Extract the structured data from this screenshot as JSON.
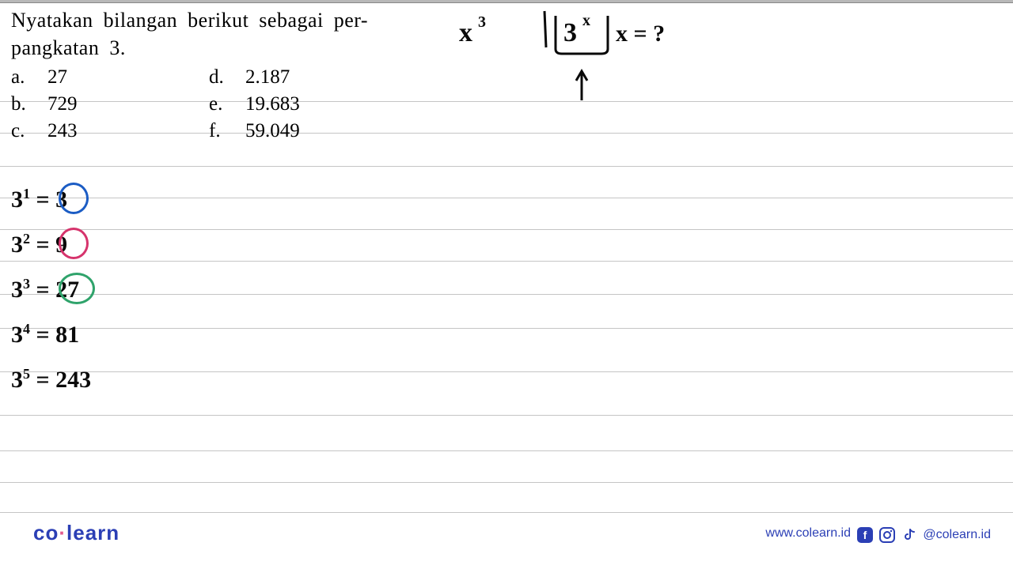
{
  "question": {
    "title_line1": "Nyatakan  bilangan  berikut  sebagai  per-",
    "title_line2": "pangkatan 3.",
    "options": [
      {
        "letter": "a.",
        "value": "27"
      },
      {
        "letter": "b.",
        "value": "729"
      },
      {
        "letter": "c.",
        "value": "243"
      },
      {
        "letter": "d.",
        "value": "2.187"
      },
      {
        "letter": "e.",
        "value": "19.683"
      },
      {
        "letter": "f.",
        "value": "59.049"
      }
    ]
  },
  "handwriting_right": {
    "x_cubed": "x",
    "x_cubed_exp": "3",
    "box_base": "3",
    "box_exp": "x",
    "eq": "x = ?"
  },
  "handwriting_left": [
    {
      "base": "3",
      "exp": "1",
      "result": "3",
      "circle_color": "#1b5cc4"
    },
    {
      "base": "3",
      "exp": "2",
      "result": "9",
      "circle_color": "#d6336c"
    },
    {
      "base": "3",
      "exp": "3",
      "result": "27",
      "circle_color": "#2fa36b"
    },
    {
      "base": "3",
      "exp": "4",
      "result": "81",
      "circle_color": null
    },
    {
      "base": "3",
      "exp": "5",
      "result": "243",
      "circle_color": null
    }
  ],
  "ruled_line_positions": [
    128,
    168,
    210,
    250,
    290,
    330,
    372,
    415,
    470,
    525,
    570,
    610,
    648
  ],
  "line_color": "#c5c5c5",
  "footer": {
    "logo_co": "co",
    "logo_learn": "learn",
    "url": "www.colearn.id",
    "handle": "@colearn.id"
  },
  "colors": {
    "brand": "#2b3fb5",
    "accent": "#e35b8f",
    "ink": "#0a0a0a",
    "circle_blue": "#1b5cc4",
    "circle_pink": "#d6336c",
    "circle_green": "#2fa36b"
  }
}
